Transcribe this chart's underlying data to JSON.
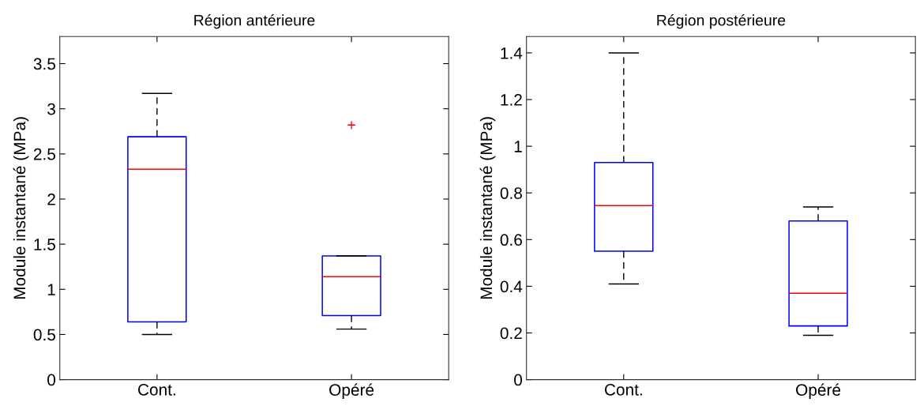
{
  "chart_data": [
    {
      "type": "box",
      "title": "Région antérieure",
      "ylabel": "Module instantané (MPa)",
      "categories": [
        "Cont.",
        "Opéré"
      ],
      "boxes": [
        {
          "low": 0.5,
          "q1": 0.64,
          "median": 2.33,
          "q3": 2.69,
          "high": 3.17
        },
        {
          "low": 0.56,
          "q1": 0.71,
          "median": 1.14,
          "q3": 1.37,
          "high": 1.37,
          "outliers": [
            2.82
          ]
        }
      ],
      "ylim": [
        0,
        3.8
      ],
      "yticks": [
        0,
        0.5,
        1,
        1.5,
        2,
        2.5,
        3,
        3.5
      ],
      "color": "#0000ff",
      "grid": false
    },
    {
      "type": "box",
      "title": "Région postérieure",
      "ylabel": "Module instantané (MPa)",
      "categories": [
        "Cont.",
        "Opéré"
      ],
      "boxes": [
        {
          "low": 0.41,
          "q1": 0.55,
          "median": 0.746,
          "q3": 0.93,
          "high": 1.4
        },
        {
          "low": 0.19,
          "q1": 0.23,
          "median": 0.37,
          "q3": 0.68,
          "high": 0.74
        }
      ],
      "ylim": [
        0,
        1.47
      ],
      "yticks": [
        0,
        0.2,
        0.4,
        0.6,
        0.8,
        1,
        1.2,
        1.4
      ],
      "color": "#0000ff",
      "grid": false
    }
  ]
}
